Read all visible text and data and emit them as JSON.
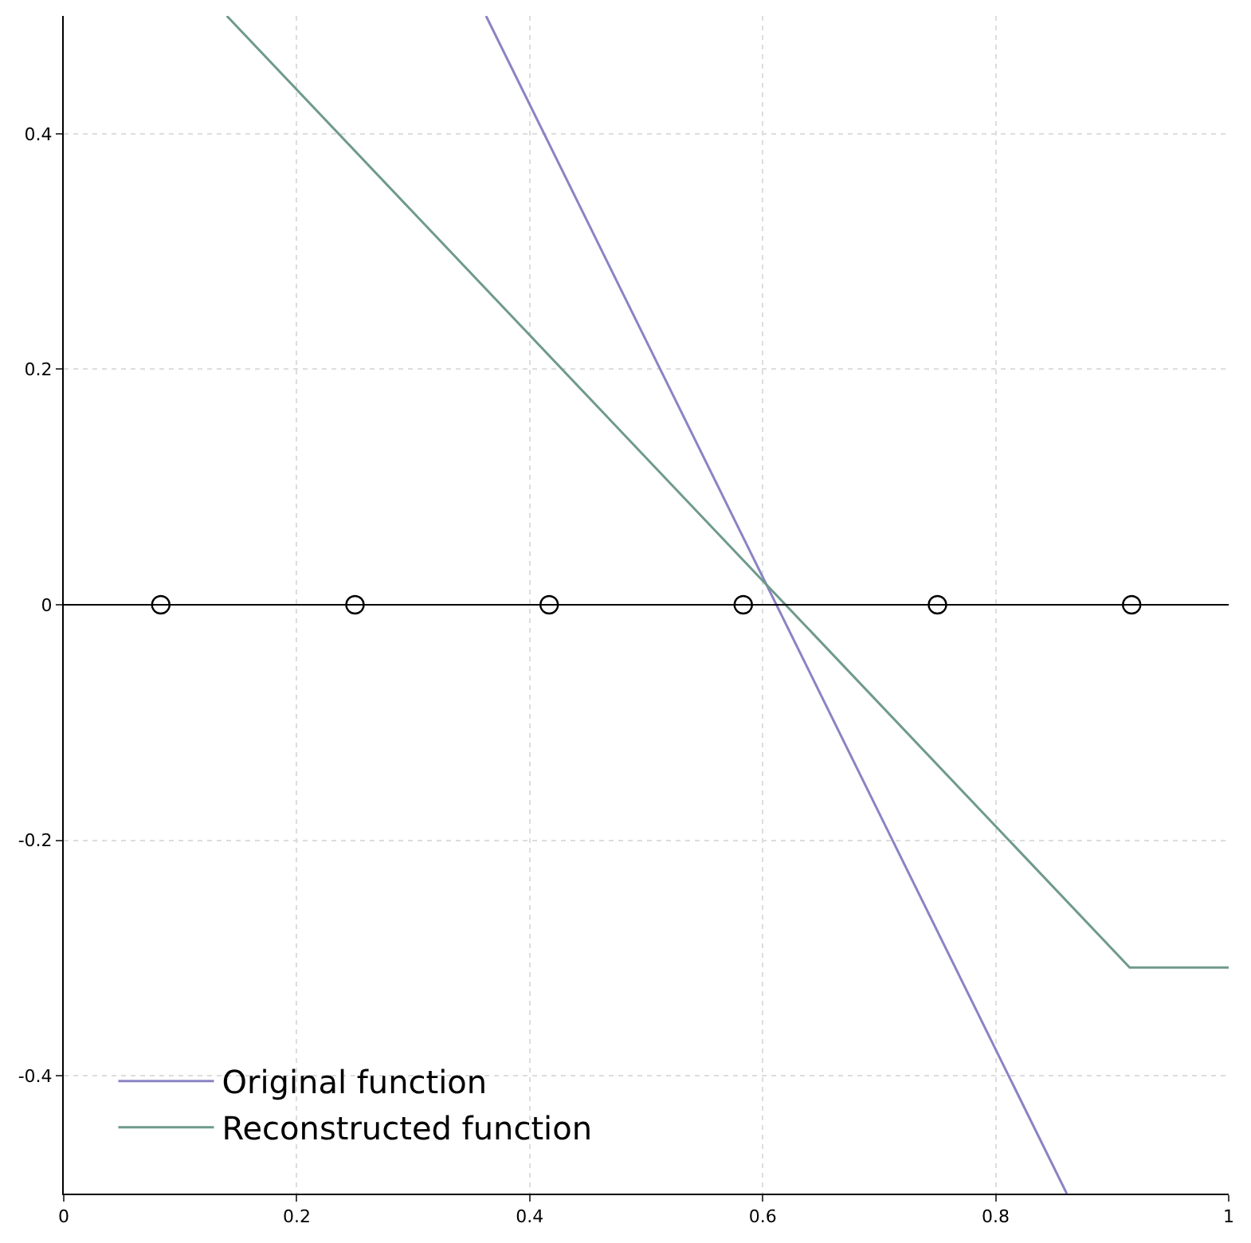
{
  "chart_data": {
    "type": "line",
    "series": [
      {
        "name": "Original function",
        "color": "#8a84c4",
        "x": [
          0.3625,
          0.861
        ],
        "values": [
          0.5,
          -0.5
        ]
      },
      {
        "name": "Reconstructed function",
        "color": "#6f9a8a",
        "x": [
          0.14,
          0.915,
          1.0
        ],
        "values": [
          0.5,
          -0.308,
          -0.308
        ]
      },
      {
        "type": "scatter",
        "color": "#000000",
        "marker": "circle",
        "x": [
          0.0833,
          0.25,
          0.4167,
          0.5833,
          0.75,
          0.9167
        ],
        "values": [
          0,
          0,
          0,
          0,
          0,
          0
        ]
      }
    ],
    "xlim": [
      0,
      1
    ],
    "xticks": [
      0,
      0.2,
      0.4,
      0.6,
      0.8,
      1
    ],
    "ylim": [
      -0.5,
      0.5
    ],
    "yticks": [
      -0.4,
      -0.2,
      0,
      0.2,
      0.4
    ],
    "ref_lines": [
      {
        "axis": "y",
        "value": 0,
        "color": "#000000"
      }
    ],
    "grid": true,
    "legend": "bottom left",
    "marker": "none",
    "line_style": "solid"
  }
}
